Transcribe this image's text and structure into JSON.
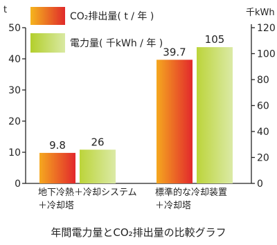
{
  "chart_data": {
    "type": "bar",
    "title": "年間電力量とCO₂排出量の比較グラフ",
    "categories": [
      [
        "地下冷熱＋冷却システム",
        "＋冷却塔"
      ],
      [
        "標準的な冷却装置",
        "＋冷却塔"
      ]
    ],
    "series": [
      {
        "name": "CO₂排出量( t / 年 )",
        "axis": "left",
        "values": [
          9.8,
          39.7
        ],
        "value_labels": [
          "9.8",
          "39.7"
        ],
        "color_top": "#f4a81d",
        "color_bottom": "#e3262c"
      },
      {
        "name": "電力量( 千kWh / 年 )",
        "axis": "right",
        "values": [
          26,
          105
        ],
        "value_labels": [
          "26",
          "105"
        ],
        "color_top": "#b9d433",
        "color_bottom": "#d4e79a"
      }
    ],
    "y_left": {
      "unit": "t",
      "range": [
        0,
        50
      ],
      "ticks": [
        0,
        10,
        20,
        30,
        40,
        50
      ]
    },
    "y_right": {
      "unit": "千kWh",
      "range": [
        0,
        120
      ],
      "ticks": [
        0,
        20,
        40,
        60,
        80,
        100,
        120
      ]
    },
    "grid": false,
    "legend_position": "top-left"
  }
}
